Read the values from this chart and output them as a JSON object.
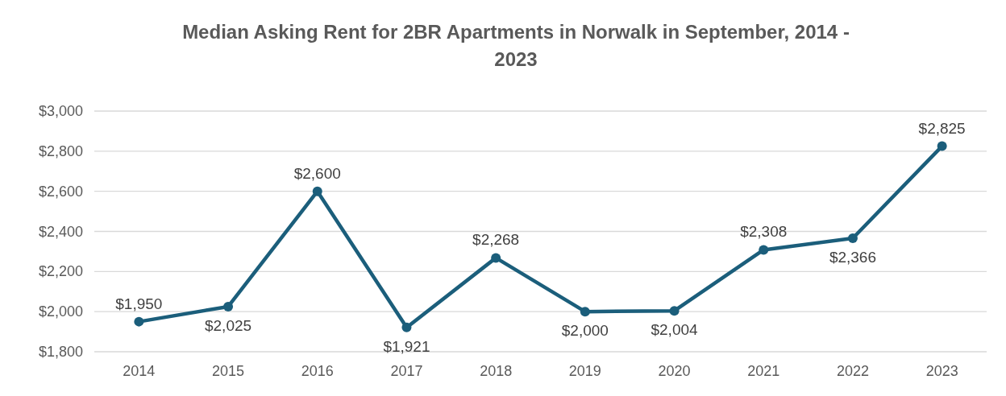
{
  "chart_data": {
    "type": "line",
    "title": "Median Asking Rent for 2BR Apartments in Norwalk in September, 2014 - 2023",
    "categories": [
      "2014",
      "2015",
      "2016",
      "2017",
      "2018",
      "2019",
      "2020",
      "2021",
      "2022",
      "2023"
    ],
    "series": [
      {
        "color": "#1b5e7b",
        "values": [
          1950,
          2025,
          2600,
          1921,
          2268,
          2000,
          2004,
          2308,
          2366,
          2825
        ]
      }
    ],
    "ylim": [
      1800,
      3000
    ],
    "yticks": [
      {
        "value": 1800,
        "label": "$1,800"
      },
      {
        "value": 2000,
        "label": "$2,000"
      },
      {
        "value": 2200,
        "label": "$2,200"
      },
      {
        "value": 2400,
        "label": "$2,400"
      },
      {
        "value": 2600,
        "label": "$2,600"
      },
      {
        "value": 2800,
        "label": "$2,800"
      },
      {
        "value": 3000,
        "label": "$3,000"
      }
    ],
    "value_labels": [
      "$1,950",
      "$2,025",
      "$2,600",
      "$1,921",
      "$2,268",
      "$2,000",
      "$2,004",
      "$2,308",
      "$2,366",
      "$2,825"
    ],
    "grid": "y",
    "marker": "circle",
    "line_style": "solid"
  }
}
